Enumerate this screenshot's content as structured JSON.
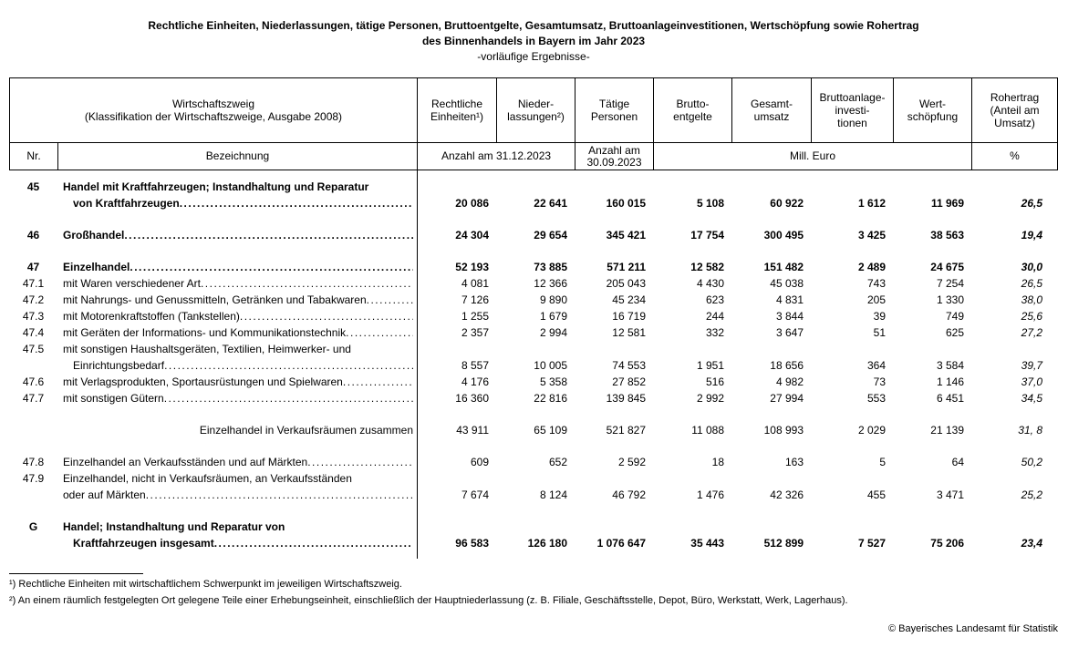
{
  "title": {
    "line1": "Rechtliche Einheiten, Niederlassungen, tätige Personen, Bruttoentgelte, Gesamtumsatz, Bruttoanlageinvestitionen, Wertschöpfung sowie Rohertrag",
    "line2": "des Binnenhandels in Bayern im Jahr 2023",
    "line3": "-vorläufige Ergebnisse-"
  },
  "table": {
    "header": {
      "wirtschaftszweig": "Wirtschaftszweig\n(Klassifikation der Wirtschaftszweige, Ausgabe 2008)",
      "columns": [
        "Rechtliche\nEinheiten¹)",
        "Nieder-\nlassungen²)",
        "Tätige\nPersonen",
        "Brutto-\nentgelte",
        "Gesamt-\numsatz",
        "Bruttoanlage-\ninvesti-\ntionen",
        "Wert-\nschöpfung",
        "Rohertrag\n(Anteil am\nUmsatz)"
      ],
      "nr": "Nr.",
      "bezeichnung": "Bezeichnung",
      "anzahl_31": "Anzahl am 31.12.2023",
      "anzahl_30": "Anzahl am\n30.09.2023",
      "mill_euro": "Mill. Euro",
      "percent": "%"
    },
    "rows": [
      {
        "nr": "45",
        "bold": true,
        "gap": false,
        "indent2": true,
        "lines": [
          "Handel mit Kraftfahrzeugen; Instandhaltung und Reparatur",
          "von Kraftfahrzeugen"
        ],
        "values": [
          "20 086",
          "22 641",
          "160 015",
          "5 108",
          "60 922",
          "1 612",
          "11 969",
          "26,5"
        ]
      },
      {
        "nr": "46",
        "bold": true,
        "gap": true,
        "lines": [
          "Großhandel"
        ],
        "values": [
          "24 304",
          "29 654",
          "345 421",
          "17 754",
          "300 495",
          "3 425",
          "38 563",
          "19,4"
        ]
      },
      {
        "nr": "47",
        "bold": true,
        "gap": true,
        "lines": [
          "Einzelhandel"
        ],
        "values": [
          "52 193",
          "73 885",
          "571 211",
          "12 582",
          "151 482",
          "2 489",
          "24 675",
          "30,0"
        ]
      },
      {
        "nr": "47.1",
        "bold": false,
        "gap": false,
        "lines": [
          "mit Waren verschiedener Art"
        ],
        "values": [
          "4 081",
          "12 366",
          "205 043",
          "4 430",
          "45 038",
          "743",
          "7 254",
          "26,5"
        ]
      },
      {
        "nr": "47.2",
        "bold": false,
        "gap": false,
        "lines": [
          "mit Nahrungs- und Genussmitteln, Getränken und Tabakwaren"
        ],
        "values": [
          "7 126",
          "9 890",
          "45 234",
          "623",
          "4 831",
          "205",
          "1 330",
          "38,0"
        ]
      },
      {
        "nr": "47.3",
        "bold": false,
        "gap": false,
        "lines": [
          "mit Motorenkraftstoffen (Tankstellen)"
        ],
        "values": [
          "1 255",
          "1 679",
          "16 719",
          "244",
          "3 844",
          "39",
          "749",
          "25,6"
        ]
      },
      {
        "nr": "47.4",
        "bold": false,
        "gap": false,
        "lines": [
          "mit Geräten der Informations- und Kommunikationstechnik"
        ],
        "values": [
          "2 357",
          "2 994",
          "12 581",
          "332",
          "3 647",
          "51",
          "625",
          "27,2"
        ]
      },
      {
        "nr": "47.5",
        "bold": false,
        "gap": false,
        "indent2": true,
        "lines": [
          "mit sonstigen Haushaltsgeräten, Textilien, Heimwerker- und",
          "Einrichtungsbedarf"
        ],
        "values": [
          "8 557",
          "10 005",
          "74 553",
          "1 951",
          "18 656",
          "364",
          "3 584",
          "39,7"
        ]
      },
      {
        "nr": "47.6",
        "bold": false,
        "gap": false,
        "lines": [
          "mit Verlagsprodukten, Sportausrüstungen und Spielwaren"
        ],
        "values": [
          "4 176",
          "5 358",
          "27 852",
          "516",
          "4 982",
          "73",
          "1 146",
          "37,0"
        ]
      },
      {
        "nr": "47.7",
        "bold": false,
        "gap": false,
        "lines": [
          "mit sonstigen Gütern"
        ],
        "values": [
          "16 360",
          "22 816",
          "139 845",
          "2 992",
          "27 994",
          "553",
          "6 451",
          "34,5"
        ]
      },
      {
        "nr": "",
        "bold": false,
        "gap": true,
        "align": "right",
        "leader": false,
        "lines": [
          "Einzelhandel in Verkaufsräumen zusammen"
        ],
        "values": [
          "43 911",
          "65 109",
          "521 827",
          "11 088",
          "108 993",
          "2 029",
          "21 139",
          "31, 8"
        ]
      },
      {
        "nr": "47.8",
        "bold": false,
        "gap": true,
        "lines": [
          "Einzelhandel an Verkaufsständen und auf Märkten"
        ],
        "values": [
          "609",
          "652",
          "2 592",
          "18",
          "163",
          "5",
          "64",
          "50,2"
        ]
      },
      {
        "nr": "47.9",
        "bold": false,
        "gap": false,
        "lines": [
          "Einzelhandel, nicht in Verkaufsräumen, an Verkaufsständen",
          "oder auf Märkten"
        ],
        "values": [
          "7 674",
          "8 124",
          "46 792",
          "1 476",
          "42 326",
          "455",
          "3 471",
          "25,2"
        ]
      },
      {
        "nr": "G",
        "bold": true,
        "gap": true,
        "indent2": true,
        "lines": [
          "Handel; Instandhaltung und Reparatur von",
          "Kraftfahrzeugen insgesamt"
        ],
        "values": [
          "96 583",
          "126 180",
          "1 076 647",
          "35 443",
          "512 899",
          "7 527",
          "75 206",
          "23,4"
        ]
      }
    ]
  },
  "footnotes": [
    "¹) Rechtliche Einheiten mit wirtschaftlichem Schwerpunkt im jeweiligen Wirtschaftszweig.",
    "²) An einem räumlich festgelegten Ort gelegene Teile einer Erhebungseinheit, einschließlich der Hauptniederlassung (z. B. Filiale, Geschäftsstelle, Depot, Büro, Werkstatt, Werk, Lagerhaus)."
  ],
  "copyright": "© Bayerisches Landesamt für Statistik"
}
